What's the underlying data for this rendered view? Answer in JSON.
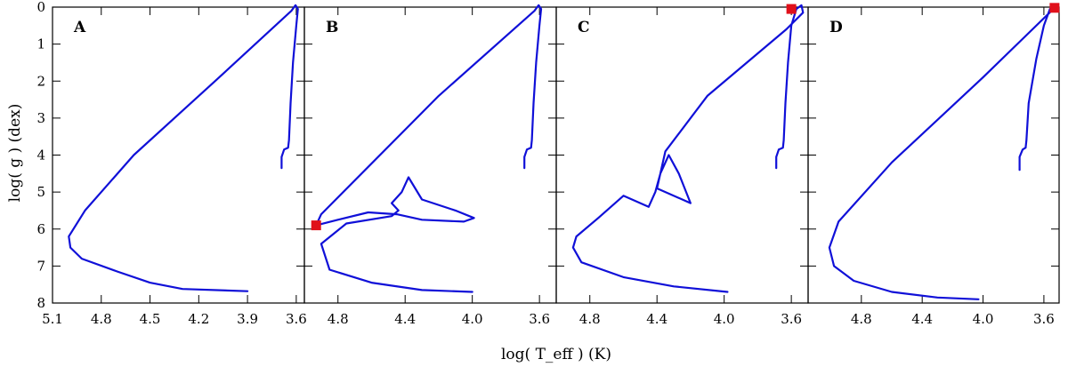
{
  "chart_data": {
    "type": "line",
    "xlabel": "log( T_eff ) (K)",
    "ylabel": "log( g ) (dex)",
    "ylim": [
      8,
      0
    ],
    "yticks": [
      "0",
      "1",
      "2",
      "3",
      "4",
      "5",
      "6",
      "7",
      "8"
    ],
    "colors": {
      "track": "#1010d8",
      "marker": "#e0101a"
    },
    "panels": [
      {
        "label": "A",
        "xlim": [
          5.1,
          3.55
        ],
        "xticks": [
          "5.1",
          "4.8",
          "4.5",
          "4.2",
          "3.9",
          "3.6"
        ],
        "marker": null,
        "track": [
          [
            3.69,
            4.35
          ],
          [
            3.69,
            4.05
          ],
          [
            3.675,
            3.85
          ],
          [
            3.65,
            3.8
          ],
          [
            3.645,
            3.6
          ],
          [
            3.635,
            2.6
          ],
          [
            3.62,
            1.5
          ],
          [
            3.6,
            0.5
          ],
          [
            3.59,
            0.05
          ],
          [
            3.605,
            -0.05
          ],
          [
            3.63,
            0.1
          ],
          [
            4.1,
            2.0
          ],
          [
            4.6,
            4.0
          ],
          [
            4.9,
            5.5
          ],
          [
            5.0,
            6.2
          ],
          [
            4.99,
            6.5
          ],
          [
            4.92,
            6.8
          ],
          [
            4.7,
            7.15
          ],
          [
            4.5,
            7.45
          ],
          [
            4.3,
            7.62
          ],
          [
            3.9,
            7.68
          ]
        ]
      },
      {
        "label": "B",
        "xlim": [
          5.0,
          3.5
        ],
        "xticks": [
          "4.8",
          "4.4",
          "4.0",
          "3.6"
        ],
        "marker": {
          "x": 4.93,
          "y": 5.9
        },
        "track": [
          [
            3.69,
            4.35
          ],
          [
            3.69,
            4.05
          ],
          [
            3.675,
            3.85
          ],
          [
            3.65,
            3.8
          ],
          [
            3.645,
            3.6
          ],
          [
            3.635,
            2.6
          ],
          [
            3.62,
            1.5
          ],
          [
            3.6,
            0.5
          ],
          [
            3.59,
            0.05
          ],
          [
            3.605,
            -0.05
          ],
          [
            3.63,
            0.1
          ],
          [
            4.2,
            2.4
          ],
          [
            4.9,
            5.6
          ],
          [
            4.93,
            5.9
          ],
          [
            4.8,
            5.75
          ],
          [
            4.62,
            5.55
          ],
          [
            4.45,
            5.6
          ],
          [
            4.3,
            5.75
          ],
          [
            4.05,
            5.8
          ],
          [
            3.99,
            5.7
          ],
          [
            4.1,
            5.5
          ],
          [
            4.3,
            5.2
          ],
          [
            4.38,
            4.6
          ],
          [
            4.42,
            5.0
          ],
          [
            4.48,
            5.3
          ],
          [
            4.44,
            5.5
          ],
          [
            4.48,
            5.65
          ],
          [
            4.75,
            5.85
          ],
          [
            4.9,
            6.4
          ],
          [
            4.85,
            7.1
          ],
          [
            4.6,
            7.45
          ],
          [
            4.3,
            7.65
          ],
          [
            4.0,
            7.7
          ]
        ]
      },
      {
        "label": "C",
        "xlim": [
          5.0,
          3.5
        ],
        "xticks": [
          "4.8",
          "4.4",
          "4.0",
          "3.6"
        ],
        "marker": {
          "x": 3.6,
          "y": 0.05
        },
        "track": [
          [
            3.69,
            4.35
          ],
          [
            3.69,
            4.05
          ],
          [
            3.675,
            3.85
          ],
          [
            3.65,
            3.8
          ],
          [
            3.645,
            3.6
          ],
          [
            3.635,
            2.6
          ],
          [
            3.62,
            1.5
          ],
          [
            3.6,
            0.5
          ],
          [
            3.57,
            0.05
          ],
          [
            3.54,
            -0.05
          ],
          [
            3.53,
            0.15
          ],
          [
            3.63,
            0.6
          ],
          [
            4.1,
            2.4
          ],
          [
            4.35,
            3.9
          ],
          [
            4.4,
            4.9
          ],
          [
            4.2,
            5.3
          ],
          [
            4.27,
            4.5
          ],
          [
            4.33,
            4.0
          ],
          [
            4.38,
            4.5
          ],
          [
            4.41,
            5.0
          ],
          [
            4.45,
            5.4
          ],
          [
            4.6,
            5.1
          ],
          [
            4.75,
            5.7
          ],
          [
            4.88,
            6.2
          ],
          [
            4.9,
            6.5
          ],
          [
            4.85,
            6.9
          ],
          [
            4.6,
            7.3
          ],
          [
            4.3,
            7.55
          ],
          [
            3.98,
            7.7
          ]
        ]
      },
      {
        "label": "D",
        "xlim": [
          5.15,
          3.5
        ],
        "xticks": [
          "4.8",
          "4.4",
          "4.0",
          "3.6"
        ],
        "marker": {
          "x": 3.53,
          "y": 0.02
        },
        "track": [
          [
            3.76,
            4.4
          ],
          [
            3.76,
            4.05
          ],
          [
            3.74,
            3.85
          ],
          [
            3.72,
            3.8
          ],
          [
            3.715,
            3.6
          ],
          [
            3.7,
            2.6
          ],
          [
            3.65,
            1.4
          ],
          [
            3.6,
            0.5
          ],
          [
            3.56,
            0.05
          ],
          [
            3.53,
            0.02
          ],
          [
            4.0,
            1.9
          ],
          [
            4.6,
            4.2
          ],
          [
            4.95,
            5.8
          ],
          [
            5.01,
            6.5
          ],
          [
            4.98,
            7.0
          ],
          [
            4.85,
            7.4
          ],
          [
            4.6,
            7.7
          ],
          [
            4.3,
            7.85
          ],
          [
            4.03,
            7.9
          ]
        ]
      }
    ]
  }
}
